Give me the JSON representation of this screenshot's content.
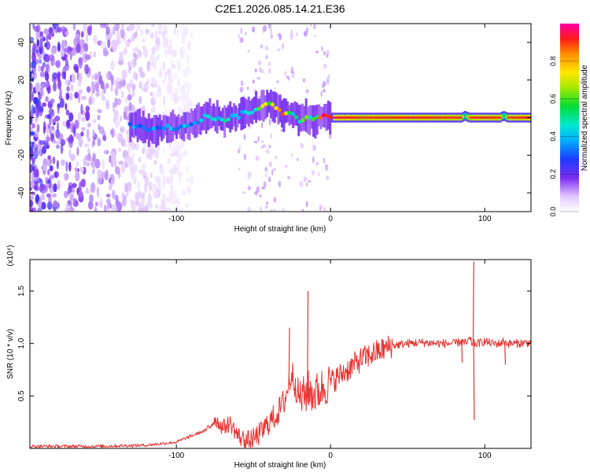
{
  "title": "C2E1.2026.085.14.21.E36",
  "colors": {
    "snr_line": "#e8322e",
    "spectro_core": "#cc1010",
    "spectro_low": "#6a1ee0",
    "axis": "#000000"
  },
  "chart_data": [
    {
      "type": "heatmap",
      "title": "C2E1.2026.085.14.21.E36",
      "xlabel": "Height of straight line (km)",
      "ylabel": "Frequency (Hz)",
      "xlim": [
        -195,
        130
      ],
      "ylim": [
        -50,
        50
      ],
      "xticks": [
        -100,
        0,
        100
      ],
      "yticks": [
        -40,
        -20,
        0,
        20,
        40
      ],
      "grid": false,
      "colorbar": {
        "label": "Normalized spectral amplitude",
        "range": [
          0,
          1
        ],
        "ticks": [
          "0.0",
          "0.2",
          "0.4",
          "0.6",
          "0.8"
        ],
        "colormap": "rainbow"
      },
      "ridge": {
        "description": "frequency of peak spectral amplitude vs height",
        "x": [
          -130,
          -115,
          -100,
          -90,
          -80,
          -70,
          -60,
          -50,
          -40,
          -35,
          -30,
          -25,
          -20,
          -15,
          -10,
          -5,
          0,
          20,
          50,
          85,
          87,
          90,
          100,
          110,
          112,
          115,
          130
        ],
        "y": [
          -4,
          -6,
          -5,
          -3,
          1,
          -1,
          1,
          4,
          7,
          6,
          2,
          3,
          -1,
          0,
          -1,
          1,
          0,
          0,
          0,
          0,
          1,
          0,
          0,
          0,
          1,
          0,
          0
        ],
        "amplitude": [
          0.35,
          0.4,
          0.45,
          0.4,
          0.5,
          0.45,
          0.5,
          0.55,
          0.7,
          0.85,
          0.9,
          0.6,
          0.55,
          0.6,
          0.7,
          0.85,
          0.95,
          0.9,
          0.92,
          0.9,
          0.5,
          0.9,
          0.92,
          0.9,
          0.5,
          0.9,
          0.92
        ]
      },
      "noise_region": {
        "description": "scattered low-amplitude speckle at low heights",
        "x_range": [
          -195,
          -115
        ],
        "amplitude": 0.2
      }
    },
    {
      "type": "line",
      "title": "",
      "xlabel": "Height of straight line (km)",
      "ylabel": "SNR (10 * v/v)",
      "y_multiplier": "(x10⁴)",
      "xlim": [
        -195,
        130
      ],
      "ylim": [
        0,
        1.8
      ],
      "xticks": [
        -100,
        0,
        100
      ],
      "yticks": [
        0.5,
        1.0,
        1.5
      ],
      "ytick_labels": [
        "0.5",
        "1.0",
        "1.5"
      ],
      "grid": false,
      "series": [
        {
          "name": "SNR",
          "x": [
            -195,
            -150,
            -120,
            -100,
            -90,
            -80,
            -75,
            -70,
            -65,
            -60,
            -55,
            -50,
            -45,
            -40,
            -35,
            -30,
            -25,
            -20,
            -17,
            -15,
            -10,
            -5,
            0,
            10,
            20,
            30,
            40,
            50,
            60,
            70,
            80,
            85,
            88,
            90,
            92,
            93,
            95,
            100,
            105,
            110,
            112,
            115,
            120,
            130
          ],
          "y": [
            0.02,
            0.02,
            0.03,
            0.06,
            0.12,
            0.18,
            0.28,
            0.2,
            0.24,
            0.12,
            0.07,
            0.09,
            0.15,
            0.25,
            0.32,
            0.45,
            0.72,
            0.48,
            0.5,
            0.55,
            0.52,
            0.58,
            0.63,
            0.74,
            0.85,
            0.92,
            0.98,
            1.0,
            1.01,
            1.0,
            1.0,
            1.02,
            1.0,
            1.04,
            1.0,
            1.0,
            1.0,
            1.02,
            1.0,
            1.0,
            1.02,
            1.0,
            1.0,
            1.01
          ]
        }
      ],
      "spikes": [
        {
          "x": -27,
          "y": 1.15
        },
        {
          "x": -15,
          "y": 1.5
        },
        {
          "x": 92.5,
          "y": 1.78
        },
        {
          "x": 92.8,
          "y": 0.27
        },
        {
          "x": 85,
          "y": 0.82
        },
        {
          "x": 113,
          "y": 0.8
        }
      ]
    }
  ]
}
